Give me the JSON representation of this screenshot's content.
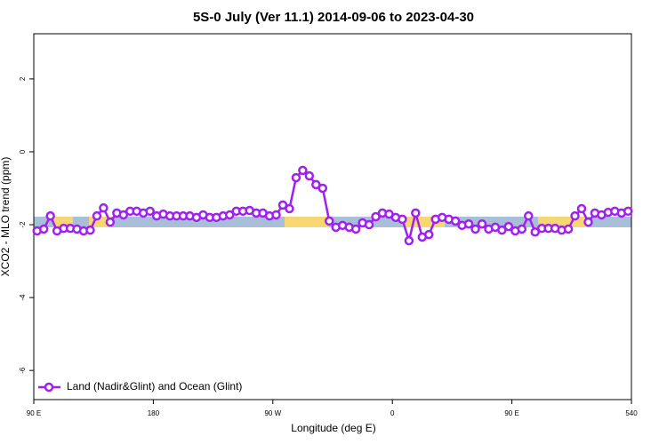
{
  "chart_data": {
    "type": "line",
    "title": "5S-0 July (Ver 11.1)   2014-09-06 to 2023-04-30",
    "x_label": "Longitude (deg E)",
    "y_label": "XCO2 - MLO trend (ppm)",
    "xlim": [
      90,
      540
    ],
    "xticks": [
      {
        "value": 90,
        "label": "90 E"
      },
      180,
      {
        "value": 270,
        "label": "90 W"
      },
      {
        "value": 360,
        "label": "0"
      },
      {
        "value": 450,
        "label": "90 E"
      },
      540
    ],
    "ylim": [
      -6.8,
      3.24
    ],
    "yticks": [
      -6,
      -4,
      -2,
      0,
      2
    ],
    "legend": "bottom-left",
    "series": [
      {
        "name": "Land (Nadir&Glint) and Ocean (Glint)",
        "color": "#a020f0",
        "x": [
          92.5,
          97.5,
          102.5,
          107.5,
          112.5,
          117.5,
          122.5,
          127.5,
          132.5,
          137.5,
          142.5,
          147.5,
          152.5,
          157.5,
          162.5,
          167.5,
          172.5,
          177.5,
          182.5,
          187.5,
          192.5,
          197.5,
          202.5,
          207.5,
          212.5,
          217.5,
          222.5,
          227.5,
          232.5,
          237.5,
          242.5,
          247.5,
          252.5,
          257.5,
          262.5,
          267.5,
          272.5,
          277.5,
          282.5,
          287.5,
          292.5,
          297.5,
          302.5,
          307.5,
          312.5,
          317.5,
          322.5,
          327.5,
          332.5,
          337.5,
          342.5,
          347.5,
          352.5,
          357.5,
          362.5,
          367.5,
          372.5,
          377.5,
          382.5,
          387.5,
          392.5,
          397.5,
          402.5,
          407.5,
          412.5,
          417.5,
          422.5,
          427.5,
          432.5,
          437.5,
          442.5,
          447.5,
          452.5,
          457.5,
          462.5,
          467.5,
          472.5,
          477.5,
          482.5,
          487.5,
          492.5,
          497.5,
          502.5,
          507.5,
          512.5,
          517.5,
          522.5,
          527.5,
          532.5,
          537.5
        ],
        "values": [
          -2.17,
          -2.12,
          -1.76,
          -2.17,
          -2.1,
          -2.1,
          -2.12,
          -2.17,
          -2.15,
          -1.76,
          -1.54,
          -1.93,
          -1.68,
          -1.73,
          -1.63,
          -1.63,
          -1.68,
          -1.63,
          -1.76,
          -1.71,
          -1.76,
          -1.76,
          -1.76,
          -1.76,
          -1.8,
          -1.73,
          -1.8,
          -1.8,
          -1.76,
          -1.73,
          -1.63,
          -1.63,
          -1.61,
          -1.68,
          -1.68,
          -1.76,
          -1.73,
          -1.46,
          -1.56,
          -0.71,
          -0.51,
          -0.66,
          -0.9,
          -1.0,
          -1.9,
          -2.07,
          -2.02,
          -2.07,
          -2.12,
          -1.95,
          -2.0,
          -1.78,
          -1.68,
          -1.71,
          -1.8,
          -1.85,
          -2.44,
          -1.68,
          -2.34,
          -2.27,
          -1.85,
          -1.8,
          -1.85,
          -1.9,
          -2.02,
          -1.98,
          -2.12,
          -1.98,
          -2.12,
          -2.07,
          -2.15,
          -2.05,
          -2.17,
          -2.12,
          -1.76,
          -2.2,
          -2.1,
          -2.1,
          -2.1,
          -2.15,
          -2.12,
          -1.76,
          -1.56,
          -1.93,
          -1.68,
          -1.73,
          -1.66,
          -1.63,
          -1.68,
          -1.63
        ]
      }
    ]
  }
}
